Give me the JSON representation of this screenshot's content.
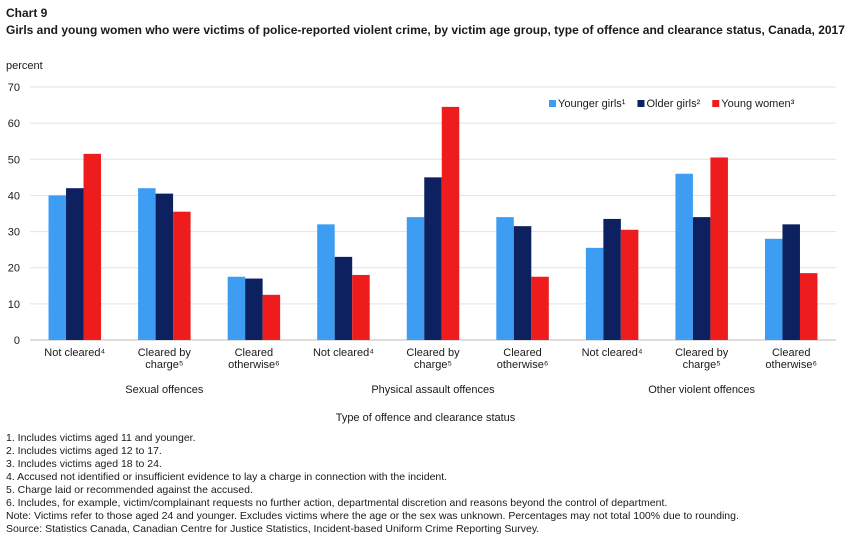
{
  "chart_label": "Chart 9",
  "chart_title": "Girls and young women who were victims of police-reported violent crime, by victim age group, type of offence and clearance status, Canada, 2017",
  "y_unit": "percent",
  "chart_data": {
    "type": "bar",
    "ylim": [
      0,
      70
    ],
    "yticks": [
      0,
      10,
      20,
      30,
      40,
      50,
      60,
      70
    ],
    "grid": true,
    "legend_position": "top-right",
    "xlabel": "Type of offence and clearance status",
    "groups": [
      {
        "name": "Sexual offences",
        "categories": [
          {
            "label": [
              "Not cleared⁴"
            ]
          },
          {
            "label": [
              "Cleared by",
              "charge⁵"
            ]
          },
          {
            "label": [
              "Cleared",
              "otherwise⁶"
            ]
          }
        ]
      },
      {
        "name": "Physical assault offences",
        "categories": [
          {
            "label": [
              "Not cleared⁴"
            ]
          },
          {
            "label": [
              "Cleared by",
              "charge⁵"
            ]
          },
          {
            "label": [
              "Cleared",
              "otherwise⁶"
            ]
          }
        ]
      },
      {
        "name": "Other violent offences",
        "categories": [
          {
            "label": [
              "Not cleared⁴"
            ]
          },
          {
            "label": [
              "Cleared by",
              "charge⁵"
            ]
          },
          {
            "label": [
              "Cleared",
              "otherwise⁶"
            ]
          }
        ]
      }
    ],
    "series": [
      {
        "name": "Younger girls¹",
        "color": "#3d9df2",
        "values": [
          40,
          42,
          17.5,
          32,
          34,
          34,
          25.5,
          46,
          28
        ]
      },
      {
        "name": "Older girls²",
        "color": "#0d2161",
        "values": [
          42,
          40.5,
          17,
          23,
          45,
          31.5,
          33.5,
          34,
          32
        ]
      },
      {
        "name": "Young women³",
        "color": "#ee1c1c",
        "values": [
          51.5,
          35.5,
          12.5,
          18,
          64.5,
          17.5,
          30.5,
          50.5,
          18.5
        ]
      }
    ]
  },
  "notes": [
    "1. Includes victims aged 11 and younger.",
    "2. Includes victims aged 12 to 17.",
    "3. Includes victims aged 18 to 24.",
    "4. Accused not identified or insufficient evidence to lay a charge in connection with the incident.",
    "5. Charge laid or recommended against the accused.",
    "6. Includes, for example, victim/complainant requests no further action, departmental discretion and reasons beyond the control of department."
  ],
  "note_text": "Note: Victims refer to those aged 24 and younger. Excludes victims where the age or the sex was unknown. Percentages may not total 100% due to rounding.",
  "source_text": "Source: Statistics Canada, Canadian Centre for Justice Statistics, Incident-based Uniform Crime Reporting Survey."
}
